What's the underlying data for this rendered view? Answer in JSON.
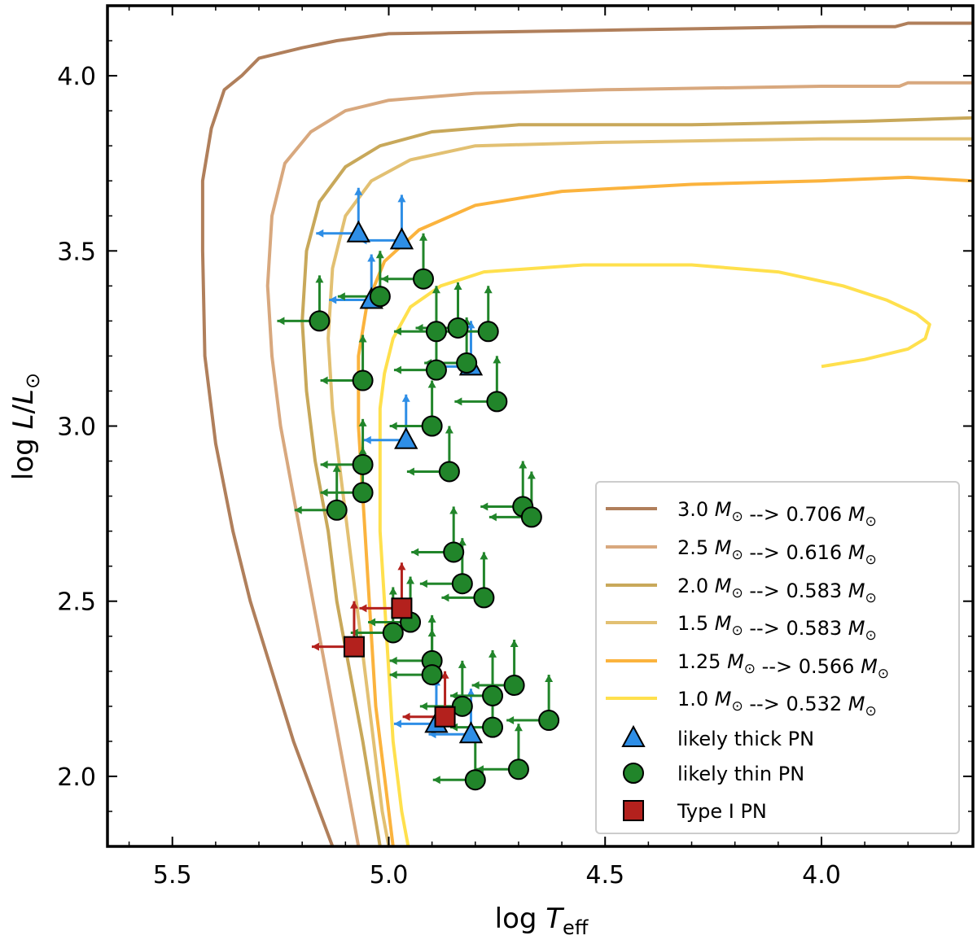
{
  "chart_data": {
    "type": "scatter",
    "xlabel": "log T_eff",
    "ylabel": "log L/L⊙",
    "xlabel_parts": {
      "main": "log ",
      "var": "T",
      "sub": "eff"
    },
    "ylabel_parts": {
      "main": "log ",
      "var1": "L",
      "slash": "/",
      "var2": "L",
      "sun": "⊙"
    },
    "xlim": [
      5.65,
      3.65
    ],
    "ylim": [
      1.8,
      4.2
    ],
    "xticks": [
      5.5,
      5.0,
      4.5,
      4.0
    ],
    "xtick_labels": [
      "5.5",
      "5.0",
      "4.5",
      "4.0"
    ],
    "yticks": [
      2.0,
      2.5,
      3.0,
      3.5,
      4.0
    ],
    "ytick_labels": [
      "2.0",
      "2.5",
      "3.0",
      "3.5",
      "4.0"
    ],
    "grid": false,
    "legend_position": "bottom-right",
    "tracks": [
      {
        "label": "3.0 M⊙ --> 0.706 M⊙",
        "color": "#b07f5b",
        "points": [
          [
            3.65,
            4.15
          ],
          [
            3.8,
            4.15
          ],
          [
            3.83,
            4.14
          ],
          [
            4.0,
            4.14
          ],
          [
            4.5,
            4.13
          ],
          [
            5.0,
            4.12
          ],
          [
            5.12,
            4.1
          ],
          [
            5.2,
            4.08
          ],
          [
            5.3,
            4.05
          ],
          [
            5.34,
            4.0
          ],
          [
            5.38,
            3.96
          ],
          [
            5.41,
            3.85
          ],
          [
            5.43,
            3.7
          ],
          [
            5.43,
            3.5
          ],
          [
            5.425,
            3.2
          ],
          [
            5.4,
            2.95
          ],
          [
            5.36,
            2.7
          ],
          [
            5.32,
            2.5
          ],
          [
            5.27,
            2.3
          ],
          [
            5.22,
            2.1
          ],
          [
            5.16,
            1.9
          ],
          [
            5.13,
            1.8
          ]
        ]
      },
      {
        "label": "2.5 M⊙ --> 0.616 M⊙",
        "color": "#d8a87e",
        "points": [
          [
            3.65,
            3.98
          ],
          [
            3.8,
            3.98
          ],
          [
            3.82,
            3.97
          ],
          [
            4.0,
            3.97
          ],
          [
            4.5,
            3.96
          ],
          [
            4.8,
            3.95
          ],
          [
            5.0,
            3.93
          ],
          [
            5.1,
            3.9
          ],
          [
            5.18,
            3.84
          ],
          [
            5.24,
            3.75
          ],
          [
            5.27,
            3.6
          ],
          [
            5.28,
            3.4
          ],
          [
            5.27,
            3.2
          ],
          [
            5.25,
            3.0
          ],
          [
            5.22,
            2.8
          ],
          [
            5.19,
            2.6
          ],
          [
            5.16,
            2.4
          ],
          [
            5.13,
            2.2
          ],
          [
            5.1,
            2.0
          ],
          [
            5.07,
            1.8
          ]
        ]
      },
      {
        "label": "2.0 M⊙ --> 0.583 M⊙",
        "color": "#c8a85a",
        "points": [
          [
            3.65,
            3.88
          ],
          [
            3.9,
            3.87
          ],
          [
            4.3,
            3.86
          ],
          [
            4.7,
            3.86
          ],
          [
            4.9,
            3.84
          ],
          [
            5.02,
            3.8
          ],
          [
            5.1,
            3.74
          ],
          [
            5.16,
            3.64
          ],
          [
            5.19,
            3.5
          ],
          [
            5.2,
            3.3
          ],
          [
            5.19,
            3.1
          ],
          [
            5.17,
            2.9
          ],
          [
            5.14,
            2.7
          ],
          [
            5.12,
            2.5
          ],
          [
            5.09,
            2.3
          ],
          [
            5.06,
            2.1
          ],
          [
            5.04,
            1.95
          ],
          [
            5.02,
            1.8
          ]
        ]
      },
      {
        "label": "1.5 M⊙ --> 0.583 M⊙",
        "color": "#e2c072",
        "points": [
          [
            3.65,
            3.82
          ],
          [
            4.0,
            3.82
          ],
          [
            4.5,
            3.81
          ],
          [
            4.8,
            3.8
          ],
          [
            4.95,
            3.76
          ],
          [
            5.04,
            3.7
          ],
          [
            5.1,
            3.6
          ],
          [
            5.13,
            3.45
          ],
          [
            5.14,
            3.25
          ],
          [
            5.13,
            3.05
          ],
          [
            5.11,
            2.85
          ],
          [
            5.09,
            2.65
          ],
          [
            5.07,
            2.45
          ],
          [
            5.05,
            2.25
          ],
          [
            5.03,
            2.05
          ],
          [
            5.015,
            1.9
          ],
          [
            5.0,
            1.8
          ]
        ]
      },
      {
        "label": "1.25 M⊙ --> 0.566 M⊙",
        "color": "#fbb33d",
        "points": [
          [
            3.65,
            3.7
          ],
          [
            3.8,
            3.71
          ],
          [
            4.0,
            3.7
          ],
          [
            4.3,
            3.69
          ],
          [
            4.6,
            3.67
          ],
          [
            4.8,
            3.63
          ],
          [
            4.93,
            3.56
          ],
          [
            5.01,
            3.47
          ],
          [
            5.05,
            3.35
          ],
          [
            5.07,
            3.2
          ],
          [
            5.07,
            3.0
          ],
          [
            5.06,
            2.8
          ],
          [
            5.05,
            2.6
          ],
          [
            5.04,
            2.4
          ],
          [
            5.03,
            2.2
          ],
          [
            5.01,
            2.0
          ],
          [
            5.0,
            1.9
          ],
          [
            4.99,
            1.8
          ]
        ]
      },
      {
        "label": "1.0 M⊙ --> 0.532 M⊙",
        "color": "#ffe04d",
        "points": [
          [
            4.0,
            3.17
          ],
          [
            3.9,
            3.19
          ],
          [
            3.8,
            3.22
          ],
          [
            3.76,
            3.25
          ],
          [
            3.75,
            3.29
          ],
          [
            3.78,
            3.32
          ],
          [
            3.85,
            3.36
          ],
          [
            3.95,
            3.4
          ],
          [
            4.1,
            3.44
          ],
          [
            4.3,
            3.46
          ],
          [
            4.55,
            3.46
          ],
          [
            4.78,
            3.44
          ],
          [
            4.88,
            3.4
          ],
          [
            4.95,
            3.34
          ],
          [
            4.99,
            3.25
          ],
          [
            5.01,
            3.15
          ],
          [
            5.02,
            3.05
          ],
          [
            5.02,
            2.9
          ],
          [
            5.02,
            2.7
          ],
          [
            5.01,
            2.5
          ],
          [
            5.0,
            2.3
          ],
          [
            4.99,
            2.1
          ],
          [
            4.98,
            2.0
          ],
          [
            4.97,
            1.9
          ],
          [
            4.955,
            1.8
          ]
        ]
      }
    ],
    "series": [
      {
        "name": "likely thick PN",
        "marker": "triangle",
        "color": "#2e8ee6",
        "points": [
          [
            5.07,
            3.55
          ],
          [
            4.97,
            3.53
          ],
          [
            5.04,
            3.36
          ],
          [
            4.81,
            3.17
          ],
          [
            4.96,
            2.96
          ],
          [
            4.89,
            2.15
          ],
          [
            4.81,
            2.12
          ]
        ]
      },
      {
        "name": "likely thin PN",
        "marker": "circle",
        "color": "#21852a",
        "points": [
          [
            5.16,
            3.3
          ],
          [
            5.02,
            3.37
          ],
          [
            4.92,
            3.42
          ],
          [
            4.89,
            3.27
          ],
          [
            4.84,
            3.28
          ],
          [
            4.77,
            3.27
          ],
          [
            4.89,
            3.16
          ],
          [
            4.82,
            3.18
          ],
          [
            4.75,
            3.07
          ],
          [
            5.06,
            3.13
          ],
          [
            4.9,
            3.0
          ],
          [
            4.86,
            2.87
          ],
          [
            5.06,
            2.89
          ],
          [
            5.06,
            2.81
          ],
          [
            5.12,
            2.76
          ],
          [
            4.69,
            2.77
          ],
          [
            4.67,
            2.74
          ],
          [
            4.85,
            2.64
          ],
          [
            4.83,
            2.55
          ],
          [
            4.78,
            2.51
          ],
          [
            4.99,
            2.41
          ],
          [
            4.95,
            2.44
          ],
          [
            4.9,
            2.33
          ],
          [
            4.9,
            2.29
          ],
          [
            4.83,
            2.2
          ],
          [
            4.76,
            2.23
          ],
          [
            4.71,
            2.26
          ],
          [
            4.76,
            2.14
          ],
          [
            4.63,
            2.16
          ],
          [
            4.7,
            2.02
          ],
          [
            4.8,
            1.99
          ]
        ]
      },
      {
        "name": "Type I PN",
        "marker": "square",
        "color": "#b3211d",
        "points": [
          [
            5.08,
            2.37
          ],
          [
            4.97,
            2.48
          ],
          [
            4.87,
            2.17
          ]
        ]
      }
    ]
  }
}
